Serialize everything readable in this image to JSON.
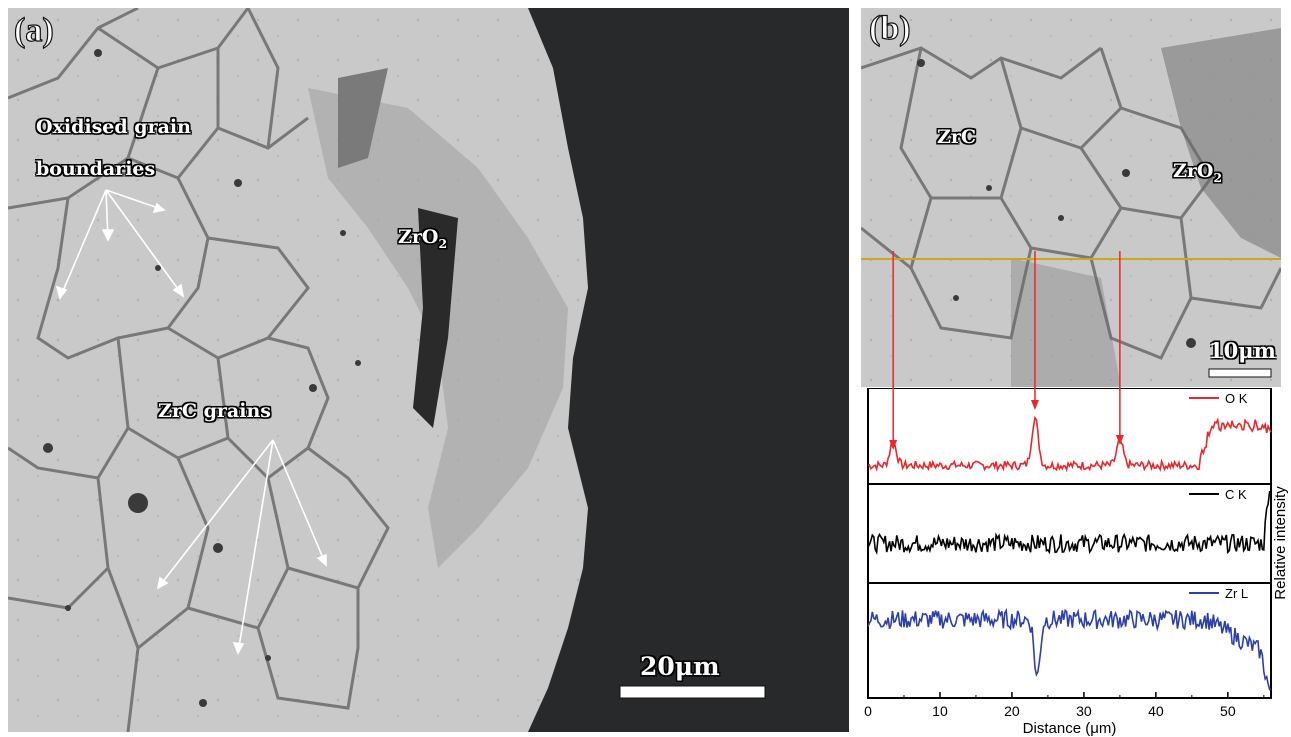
{
  "panel_a": {
    "tag": "(a)",
    "label_boundaries_line1": "Oxidised grain",
    "label_boundaries_line2": "boundaries",
    "label_oxide_main": "ZrO",
    "label_oxide_sub": "2",
    "label_grains": "ZrC grains",
    "scale_bar": "20μm"
  },
  "panel_b": {
    "tag": "(b)",
    "label_zrc": "ZrC",
    "label_oxide_main": "ZrO",
    "label_oxide_sub": "2",
    "scale_bar": "10μm"
  },
  "colors": {
    "O": "#e8282a",
    "C": "#000000",
    "Zr": "#2d3fa8",
    "scan_line": "#c8a820"
  },
  "chart_data": {
    "type": "line",
    "xlabel": "Distance (μm)",
    "ylabel": "Relative intensity",
    "xlim": [
      0,
      56
    ],
    "xticks": [
      "0",
      "10",
      "20",
      "30",
      "40",
      "50"
    ],
    "series": [
      {
        "name": "O K",
        "peaks_at": [
          3.5,
          23.2,
          35.0
        ],
        "rise_from": 46
      },
      {
        "name": "C K"
      },
      {
        "name": "Zr L",
        "dip_at": 23.5
      }
    ]
  }
}
